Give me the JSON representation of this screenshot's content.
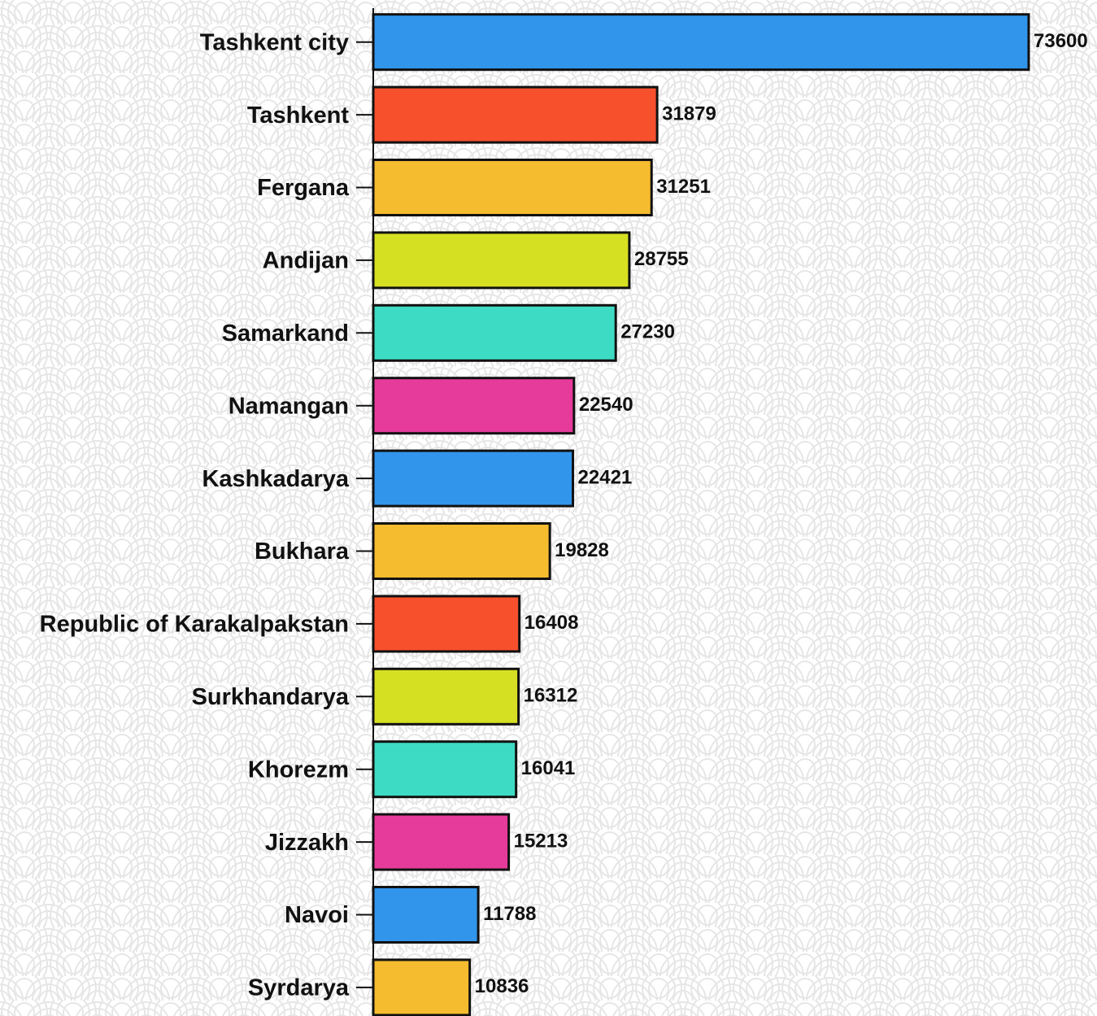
{
  "chart_data": {
    "type": "bar",
    "orientation": "horizontal",
    "categories": [
      "Tashkent city",
      "Tashkent",
      "Fergana",
      "Andijan",
      "Samarkand",
      "Namangan",
      "Kashkadarya",
      "Bukhara",
      "Republic of Karakalpakstan",
      "Surkhandarya",
      "Khorezm",
      "Jizzakh",
      "Navoi",
      "Syrdarya"
    ],
    "values": [
      73600,
      31879,
      31251,
      28755,
      27230,
      22540,
      22421,
      19828,
      16408,
      16312,
      16041,
      15213,
      11788,
      10836
    ],
    "colors": [
      "#3195eb",
      "#f7502d",
      "#f6bc2f",
      "#d6e022",
      "#3ddbc3",
      "#e63b9a",
      "#3195eb",
      "#f6bc2f",
      "#f7502d",
      "#d6e022",
      "#3ddbc3",
      "#e63b9a",
      "#3195eb",
      "#f6bc2f"
    ],
    "xlim": [
      0,
      73600
    ]
  }
}
